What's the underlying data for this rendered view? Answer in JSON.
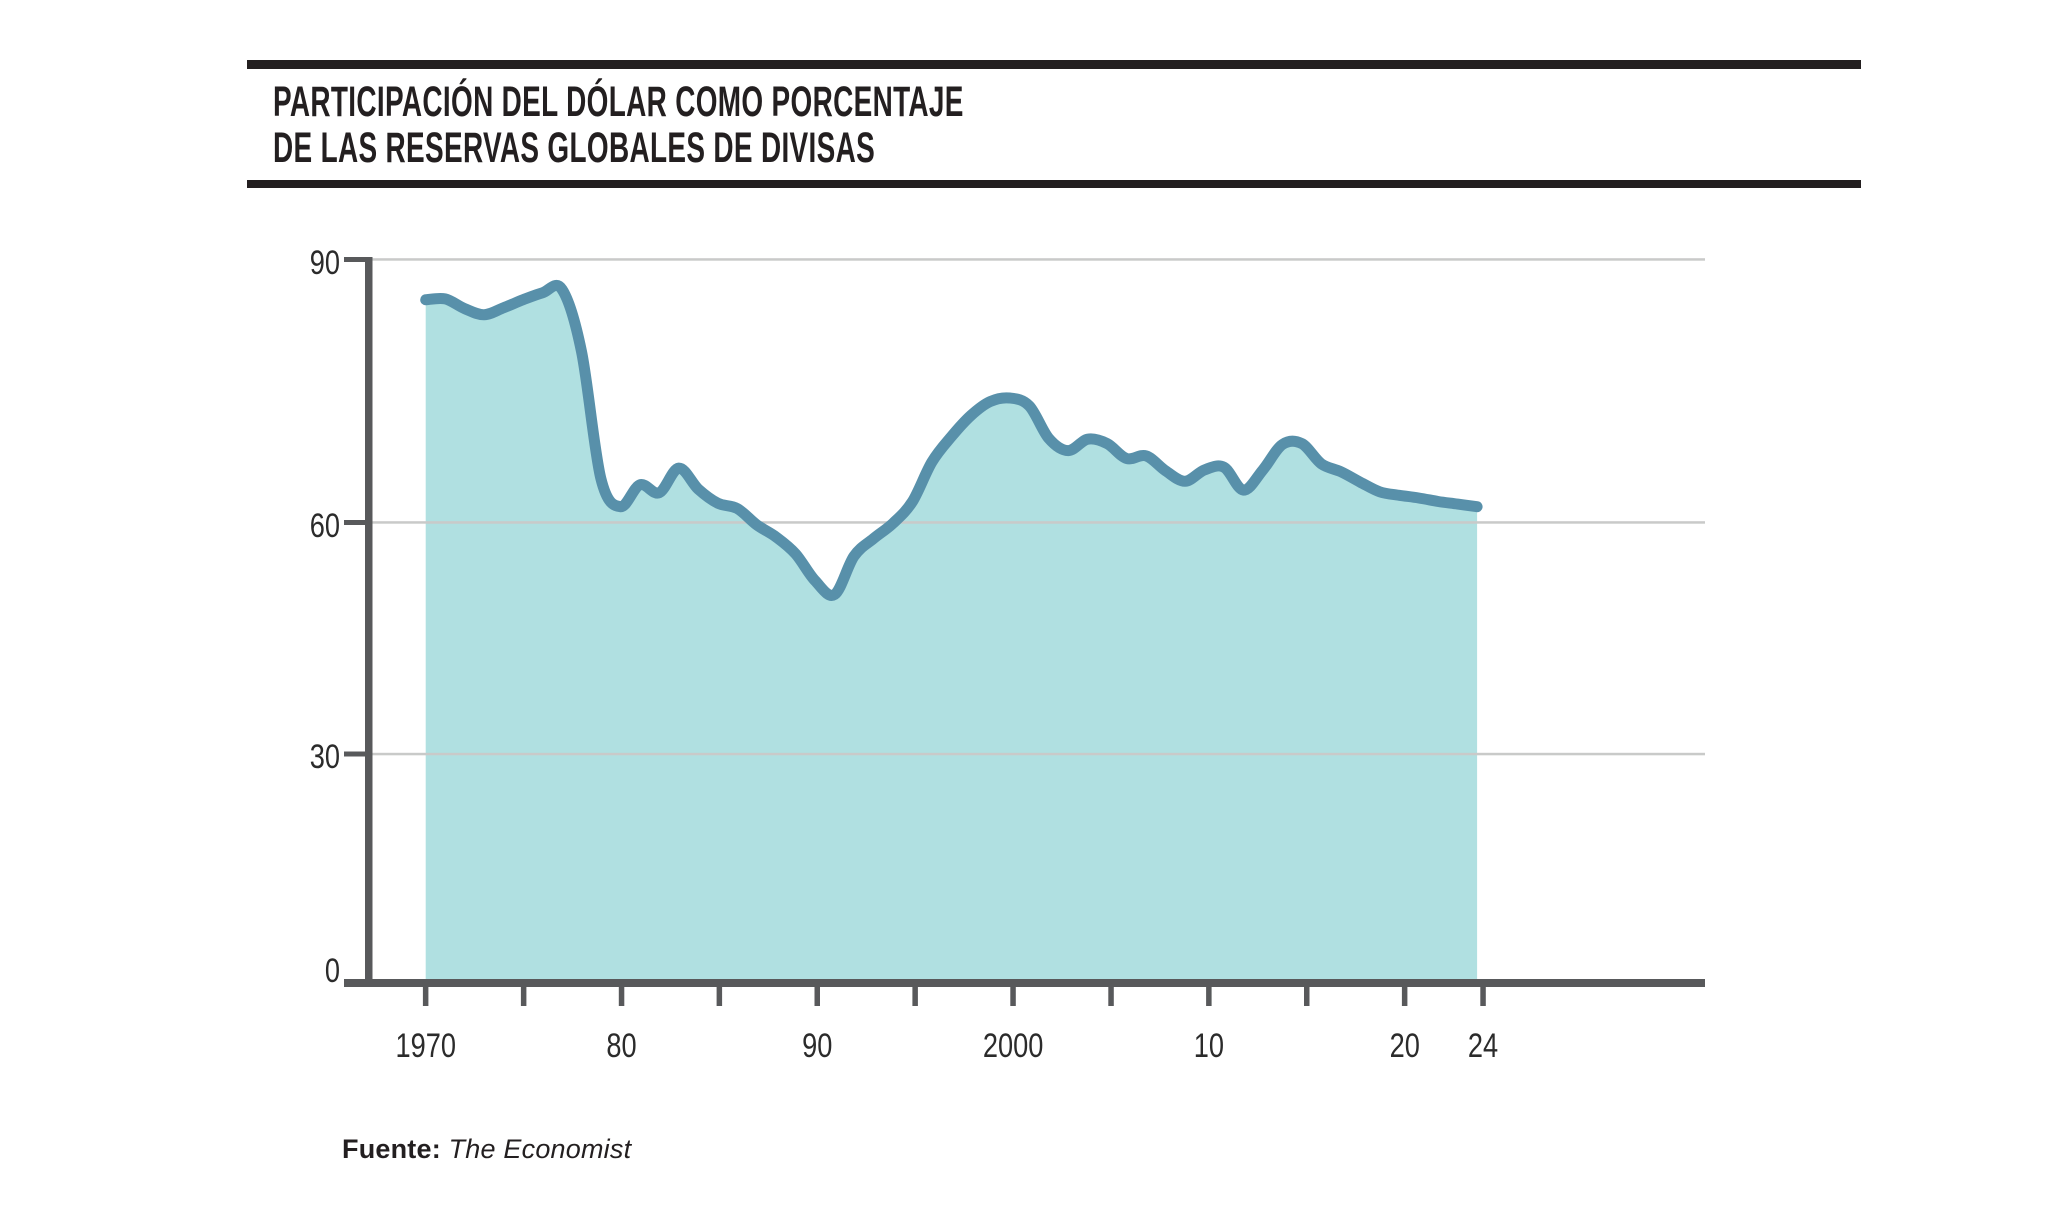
{
  "header": {
    "title_line1": "PARTICIPACIÓN DEL DÓLAR COMO PORCENTAJE",
    "title_line2": "DE LAS RESERVAS GLOBALES DE DIVISAS"
  },
  "source": {
    "label": "Fuente:",
    "name": "The Economist"
  },
  "chart_data": {
    "type": "area",
    "title": "Participación del dólar como porcentaje de las reservas globales de divisas",
    "xlabel": "",
    "ylabel": "",
    "ylim": [
      0,
      90
    ],
    "grid": "horizontal",
    "legend": "none",
    "y_tick_values": [
      90,
      60,
      30,
      0
    ],
    "y_tick_labels": [
      "90",
      "60",
      "30",
      "0"
    ],
    "x_tick_years": [
      1970,
      1975,
      1980,
      1985,
      1990,
      1995,
      2000,
      2005,
      2010,
      2015,
      2020,
      2024
    ],
    "x_tick_labels": [
      "1970",
      "80",
      "90",
      "2000",
      "10",
      "20",
      "24"
    ],
    "x_label_years": [
      1970,
      1980,
      1990,
      2000,
      2010,
      2020,
      2024
    ],
    "x": [
      1970,
      1971,
      1972,
      1973,
      1974,
      1975,
      1976,
      1977,
      1978,
      1979,
      1980,
      1981,
      1982,
      1983,
      1984,
      1985,
      1986,
      1987,
      1988,
      1989,
      1990,
      1991,
      1992,
      1993,
      1994,
      1995,
      1996,
      1997,
      1998,
      1999,
      2000,
      2001,
      2002,
      2003,
      2004,
      2005,
      2006,
      2007,
      2008,
      2009,
      2010,
      2011,
      2012,
      2013,
      2014,
      2015,
      2016,
      2017,
      2018,
      2019,
      2020,
      2021,
      2022,
      2023,
      2024
    ],
    "values": [
      85.4,
      85.5,
      84.4,
      83.7,
      84.5,
      85.4,
      86.2,
      86.6,
      79.5,
      65.0,
      61.8,
      64.3,
      63.4,
      66.2,
      63.8,
      62.2,
      61.6,
      59.7,
      58.1,
      55.9,
      52.4,
      50.6,
      55.6,
      57.9,
      59.9,
      62.4,
      66.9,
      69.8,
      72.2,
      73.8,
      74.2,
      73.3,
      69.6,
      68.2,
      69.5,
      69.0,
      67.3,
      67.6,
      65.9,
      64.7,
      66.0,
      66.3,
      63.7,
      66.0,
      68.9,
      69.0,
      66.7,
      65.8,
      64.6,
      63.5,
      63.1,
      62.8,
      62.4,
      62.1,
      61.8
    ],
    "colors": {
      "fill": "#b0e0e1",
      "line": "#5890aa",
      "axis": "#58595b",
      "grid": "#c9cac9",
      "rule": "#231f20",
      "text": "#2b2b2b"
    }
  }
}
